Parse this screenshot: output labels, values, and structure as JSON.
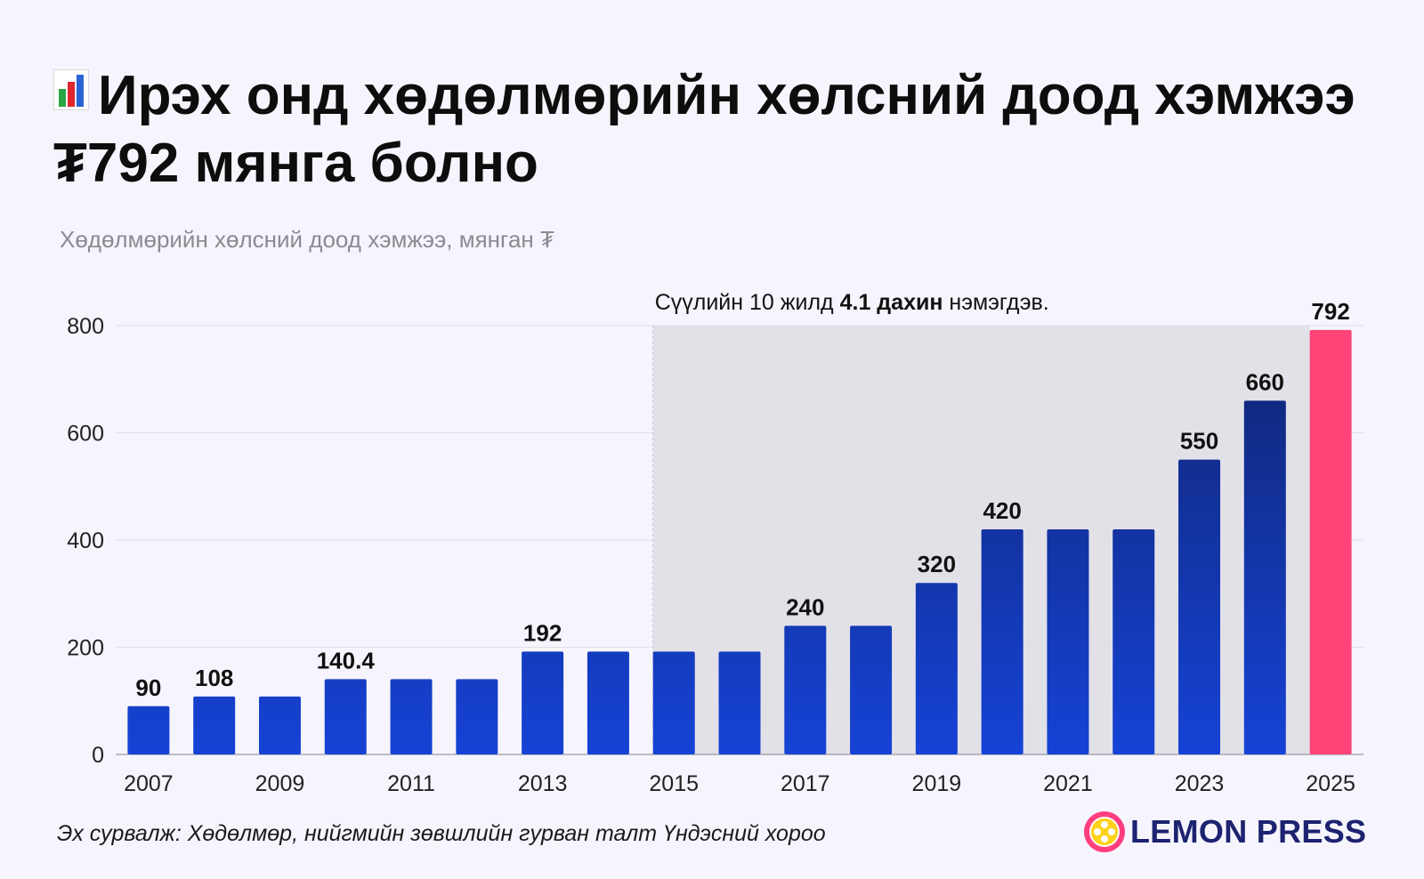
{
  "title": "Ирэх онд хөдөлмөрийн хөлсний доод хэмжээ ₮792 мянга болно",
  "title_icon": "bar-chart-emoji-icon",
  "subtitle": "Хөдөлмөрийн хөлсний доод хэмжээ, мянган ₮",
  "source": "Эх сурвалж: Хөдөлмөр, нийгмийн зөвшлийн гурван талт Үндэсний хороо",
  "logo_text": "LEMON PRESS",
  "colors": {
    "background": "#f6f5fd",
    "bar_dark": "#0f2470",
    "bar_light": "#1643d6",
    "highlight": "#ff4477",
    "shade": "#e2e1e8"
  },
  "chart_data": {
    "type": "bar",
    "title": "Ирэх онд хөдөлмөрийн хөлсний доод хэмжээ ₮792 мянга болно",
    "ylabel": "Хөдөлмөрийн хөлсний доод хэмжээ, мянган ₮",
    "categories": [
      2007,
      2008,
      2009,
      2010,
      2011,
      2012,
      2013,
      2014,
      2015,
      2016,
      2017,
      2018,
      2019,
      2020,
      2021,
      2022,
      2023,
      2024,
      2025
    ],
    "values": [
      90,
      108,
      108,
      140.4,
      140.4,
      140.4,
      192,
      192,
      192,
      192,
      240,
      240,
      320,
      420,
      420,
      420,
      550,
      660,
      792
    ],
    "value_labels": [
      "90",
      "108",
      "",
      "140.4",
      "",
      "",
      "192",
      "",
      "",
      "",
      "240",
      "",
      "320",
      "420",
      "",
      "",
      "550",
      "660",
      "792"
    ],
    "x_tick_labels": [
      "2007",
      "2009",
      "2011",
      "2013",
      "2015",
      "2017",
      "2019",
      "2021",
      "2023",
      "2025"
    ],
    "y_ticks": [
      0,
      200,
      400,
      600,
      800
    ],
    "ylim": [
      0,
      800
    ],
    "grid": true,
    "highlight_category": 2025,
    "annotation": {
      "text_before": "Сүүлийн 10 жилд ",
      "text_bold": "4.1 дахин",
      "text_after": " нэмэгдэв.",
      "shaded_range": [
        2015,
        2025
      ]
    }
  }
}
